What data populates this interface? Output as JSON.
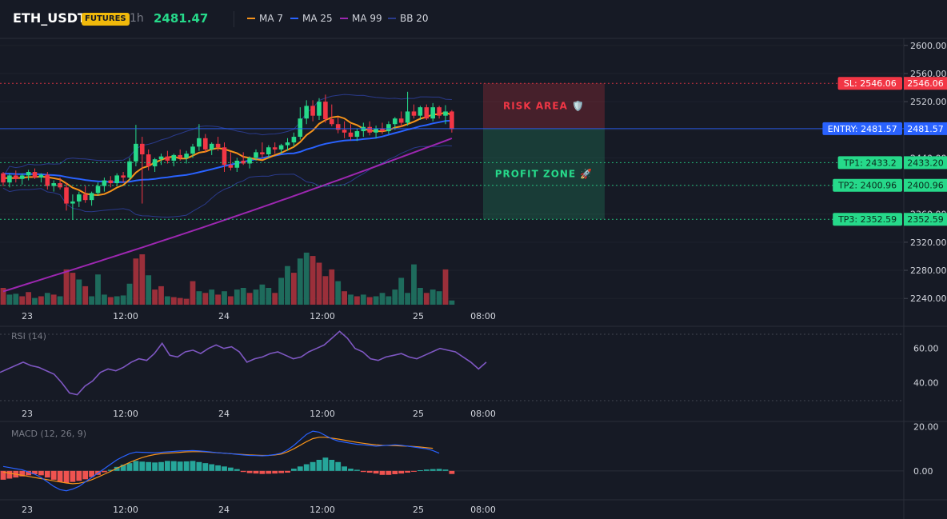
{
  "header": {
    "symbol": "ETH_USDT",
    "badge": "FUTURES",
    "timeframe": "1h",
    "last_price": "2481.47",
    "legend": [
      {
        "label": "MA 7",
        "color": "#f7931a"
      },
      {
        "label": "MA 25",
        "color": "#2962ff"
      },
      {
        "label": "MA 99",
        "color": "#9c27b0"
      },
      {
        "label": "BB 20",
        "color": "#2a3a8a"
      }
    ]
  },
  "colors": {
    "up": "#26d98a",
    "down": "#f23645",
    "vol_up": "#1e6b5c",
    "vol_down": "#9b2f3a",
    "entry": "#2962ff",
    "sl": "#f23645",
    "tp": "#26d98a",
    "rsi": "#7e57c2",
    "macd": "#2962ff",
    "signal": "#f7931a"
  },
  "zones": {
    "risk_label": "RISK AREA 🛡️",
    "profit_label": "PROFIT ZONE 🚀"
  },
  "chart_data": [
    {
      "type": "candlestick",
      "title": "ETH_USDT",
      "ylim": [
        2230,
        2610
      ],
      "yticks": [
        "2600.00",
        "2560.00",
        "2520.00",
        "2480.00",
        "2440.00",
        "2400.00",
        "2360.00",
        "2320.00",
        "2280.00",
        "2240.00"
      ],
      "xticks": [
        "23",
        "12:00",
        "24",
        "12:00",
        "25",
        "08:00"
      ],
      "candles": [
        [
          2418,
          2420,
          2400,
          2405
        ],
        [
          2405,
          2418,
          2398,
          2415
        ],
        [
          2415,
          2422,
          2405,
          2410
        ],
        [
          2410,
          2418,
          2402,
          2415
        ],
        [
          2415,
          2423,
          2408,
          2420
        ],
        [
          2420,
          2425,
          2410,
          2412
        ],
        [
          2412,
          2418,
          2405,
          2416
        ],
        [
          2416,
          2420,
          2395,
          2400
        ],
        [
          2400,
          2408,
          2392,
          2404
        ],
        [
          2404,
          2412,
          2395,
          2398
        ],
        [
          2398,
          2405,
          2365,
          2375
        ],
        [
          2375,
          2388,
          2352,
          2378
        ],
        [
          2378,
          2392,
          2370,
          2388
        ],
        [
          2388,
          2400,
          2376,
          2380
        ],
        [
          2380,
          2392,
          2372,
          2390
        ],
        [
          2390,
          2405,
          2386,
          2400
        ],
        [
          2400,
          2412,
          2392,
          2408
        ],
        [
          2408,
          2414,
          2398,
          2404
        ],
        [
          2404,
          2418,
          2400,
          2415
        ],
        [
          2415,
          2420,
          2405,
          2412
        ],
        [
          2412,
          2440,
          2408,
          2435
        ],
        [
          2435,
          2487,
          2428,
          2460
        ],
        [
          2460,
          2470,
          2375,
          2445
        ],
        [
          2445,
          2452,
          2422,
          2428
        ],
        [
          2428,
          2440,
          2420,
          2438
        ],
        [
          2438,
          2446,
          2430,
          2442
        ],
        [
          2442,
          2450,
          2432,
          2436
        ],
        [
          2436,
          2446,
          2428,
          2444
        ],
        [
          2444,
          2452,
          2436,
          2440
        ],
        [
          2440,
          2450,
          2432,
          2446
        ],
        [
          2446,
          2460,
          2440,
          2456
        ],
        [
          2456,
          2488,
          2450,
          2468
        ],
        [
          2468,
          2474,
          2448,
          2452
        ],
        [
          2452,
          2462,
          2444,
          2460
        ],
        [
          2460,
          2470,
          2450,
          2455
        ],
        [
          2455,
          2462,
          2420,
          2430
        ],
        [
          2430,
          2448,
          2422,
          2426
        ],
        [
          2426,
          2440,
          2420,
          2436
        ],
        [
          2436,
          2448,
          2430,
          2432
        ],
        [
          2432,
          2442,
          2425,
          2440
        ],
        [
          2440,
          2452,
          2436,
          2448
        ],
        [
          2448,
          2462,
          2440,
          2445
        ],
        [
          2445,
          2458,
          2440,
          2455
        ],
        [
          2455,
          2462,
          2446,
          2452
        ],
        [
          2452,
          2460,
          2446,
          2458
        ],
        [
          2458,
          2468,
          2450,
          2462
        ],
        [
          2462,
          2476,
          2456,
          2470
        ],
        [
          2470,
          2512,
          2466,
          2496
        ],
        [
          2496,
          2522,
          2488,
          2514
        ],
        [
          2514,
          2522,
          2492,
          2500
        ],
        [
          2500,
          2525,
          2494,
          2520
        ],
        [
          2520,
          2530,
          2490,
          2495
        ],
        [
          2495,
          2516,
          2485,
          2488
        ],
        [
          2488,
          2498,
          2475,
          2480
        ],
        [
          2480,
          2492,
          2468,
          2476
        ],
        [
          2476,
          2488,
          2465,
          2470
        ],
        [
          2470,
          2482,
          2464,
          2478
        ],
        [
          2478,
          2490,
          2470,
          2484
        ],
        [
          2484,
          2492,
          2472,
          2476
        ],
        [
          2476,
          2486,
          2468,
          2482
        ],
        [
          2482,
          2490,
          2474,
          2478
        ],
        [
          2478,
          2492,
          2474,
          2488
        ],
        [
          2488,
          2498,
          2480,
          2496
        ],
        [
          2496,
          2506,
          2484,
          2490
        ],
        [
          2490,
          2534,
          2486,
          2506
        ],
        [
          2506,
          2516,
          2496,
          2500
        ],
        [
          2500,
          2514,
          2494,
          2512
        ],
        [
          2512,
          2516,
          2494,
          2496
        ],
        [
          2496,
          2518,
          2492,
          2512
        ],
        [
          2512,
          2514,
          2496,
          2500
        ],
        [
          2500,
          2515,
          2488,
          2506
        ],
        [
          2506,
          2508,
          2476,
          2481
        ]
      ],
      "volumes": [
        [
          20,
          0
        ],
        [
          12,
          1
        ],
        [
          13,
          1
        ],
        [
          10,
          0
        ],
        [
          15,
          0
        ],
        [
          8,
          1
        ],
        [
          10,
          0
        ],
        [
          14,
          1
        ],
        [
          12,
          0
        ],
        [
          10,
          1
        ],
        [
          42,
          0
        ],
        [
          38,
          0
        ],
        [
          30,
          1
        ],
        [
          22,
          0
        ],
        [
          10,
          1
        ],
        [
          36,
          1
        ],
        [
          12,
          1
        ],
        [
          9,
          0
        ],
        [
          10,
          1
        ],
        [
          11,
          1
        ],
        [
          25,
          1
        ],
        [
          55,
          0
        ],
        [
          60,
          0
        ],
        [
          35,
          1
        ],
        [
          18,
          0
        ],
        [
          22,
          0
        ],
        [
          10,
          1
        ],
        [
          9,
          0
        ],
        [
          8,
          0
        ],
        [
          7,
          0
        ],
        [
          28,
          0
        ],
        [
          16,
          1
        ],
        [
          14,
          0
        ],
        [
          18,
          1
        ],
        [
          12,
          0
        ],
        [
          16,
          1
        ],
        [
          10,
          0
        ],
        [
          18,
          1
        ],
        [
          20,
          1
        ],
        [
          14,
          0
        ],
        [
          18,
          1
        ],
        [
          24,
          1
        ],
        [
          20,
          1
        ],
        [
          14,
          0
        ],
        [
          32,
          1
        ],
        [
          46,
          1
        ],
        [
          38,
          0
        ],
        [
          55,
          1
        ],
        [
          62,
          1
        ],
        [
          58,
          0
        ],
        [
          50,
          0
        ],
        [
          34,
          0
        ],
        [
          42,
          0
        ],
        [
          28,
          1
        ],
        [
          16,
          0
        ],
        [
          12,
          1
        ],
        [
          10,
          0
        ],
        [
          12,
          1
        ],
        [
          9,
          0
        ],
        [
          10,
          1
        ],
        [
          14,
          1
        ],
        [
          10,
          1
        ],
        [
          18,
          1
        ],
        [
          32,
          1
        ],
        [
          14,
          1
        ],
        [
          48,
          1
        ],
        [
          20,
          1
        ],
        [
          14,
          0
        ],
        [
          18,
          1
        ],
        [
          16,
          1
        ],
        [
          42,
          0
        ],
        [
          5,
          1
        ]
      ],
      "ma7_start": 2412,
      "levels": [
        {
          "name": "SL",
          "label": "SL: 2546.06",
          "value": 2546.06,
          "axis": "2546.06"
        },
        {
          "name": "ENTRY",
          "label": "ENTRY: 2481.57",
          "value": 2481.57,
          "axis": "2481.57"
        },
        {
          "name": "TP1",
          "label": "TP1: 2433.2",
          "value": 2433.2,
          "axis": "2433.20"
        },
        {
          "name": "TP2",
          "label": "TP2: 2400.96",
          "value": 2400.96,
          "axis": "2400.96"
        },
        {
          "name": "TP3",
          "label": "TP3: 2352.59",
          "value": 2352.59,
          "axis": "2352.59"
        }
      ]
    },
    {
      "type": "line",
      "title": "RSI (14)",
      "ylim": [
        30,
        72
      ],
      "yticks": [
        "60.00",
        "40.00"
      ],
      "xticks": [
        "23",
        "12:00",
        "24",
        "12:00",
        "25",
        "08:00"
      ],
      "values": [
        46,
        48,
        50,
        52,
        50,
        49,
        47,
        45,
        40,
        34,
        33,
        38,
        41,
        46,
        48,
        47,
        49,
        52,
        54,
        53,
        57,
        63,
        56,
        55,
        58,
        59,
        57,
        60,
        62,
        60,
        61,
        58,
        52,
        54,
        55,
        57,
        58,
        56,
        54,
        55,
        58,
        60,
        62,
        66,
        70,
        66,
        60,
        58,
        54,
        53,
        55,
        56,
        57,
        55,
        54,
        56,
        58,
        60,
        59,
        58,
        55,
        52,
        48,
        52
      ]
    },
    {
      "type": "bar",
      "title": "MACD (12, 26, 9)",
      "ylim": [
        -12,
        22
      ],
      "yticks": [
        "20.00",
        "0.00"
      ],
      "xticks": [
        "23",
        "12:00",
        "24",
        "12:00",
        "25",
        "08:00"
      ],
      "hist": [
        -4,
        -3.5,
        -3,
        -2.5,
        -2,
        -1.5,
        -2,
        -3,
        -4,
        -5,
        -5.5,
        -5,
        -4.5,
        -3.8,
        -2.8,
        -1.8,
        -0.6,
        0.5,
        1.8,
        2.8,
        3.5,
        4.5,
        4.2,
        4,
        3.8,
        4,
        4.5,
        4.4,
        4.2,
        4.3,
        4.5,
        4,
        3.5,
        3,
        2.5,
        2,
        1.5,
        0.8,
        -0.5,
        -1,
        -1.2,
        -1.4,
        -1.3,
        -1.2,
        -1,
        -0.8,
        1,
        2,
        3,
        4,
        5,
        6,
        5,
        4,
        2,
        1,
        0.5,
        -0.5,
        -0.8,
        -1.2,
        -1.8,
        -1.8,
        -1.5,
        -1.2,
        -0.8,
        -0.4,
        0.3,
        0.6,
        0.8,
        0.9,
        0.6,
        -1.4
      ],
      "macd": [
        2,
        1.5,
        1,
        0.5,
        -0.5,
        -1.5,
        -3,
        -5,
        -7,
        -8.5,
        -9,
        -8.2,
        -7,
        -5,
        -3,
        -1,
        1,
        3,
        5,
        6.5,
        7.8,
        8.5,
        8.4,
        8.3,
        8.2,
        8.4,
        8.6,
        8.8,
        9,
        9.1,
        9.2,
        9,
        8.8,
        8.5,
        8.2,
        8,
        7.8,
        7.5,
        7.2,
        7,
        6.9,
        6.8,
        7,
        7.4,
        8,
        9.5,
        11.5,
        14,
        16.5,
        18,
        17.5,
        16,
        14.5,
        13.5,
        13,
        12.5,
        12,
        11.8,
        11.5,
        11.2,
        11.4,
        11.6,
        11.8,
        11.6,
        11.2,
        10.8,
        10.4,
        10,
        9.2,
        8
      ],
      "signal": [
        -0.5,
        -1,
        -1.5,
        -2,
        -2.5,
        -3,
        -3.5,
        -4,
        -4.5,
        -5,
        -5.5,
        -5.8,
        -5.6,
        -5,
        -4,
        -2.8,
        -1.5,
        -0.2,
        1.2,
        2.5,
        3.8,
        5,
        6,
        6.8,
        7.4,
        7.8,
        8,
        8.2,
        8.4,
        8.6,
        8.7,
        8.7,
        8.6,
        8.4,
        8.2,
        8,
        7.8,
        7.6,
        7.4,
        7.2,
        7.1,
        7,
        7,
        7.2,
        7.6,
        8.6,
        10,
        11.6,
        13.2,
        14.6,
        15.2,
        15.2,
        14.8,
        14.4,
        13.9,
        13.4,
        12.9,
        12.5,
        12.1,
        11.8,
        11.6,
        11.5,
        11.4,
        11.3,
        11.2,
        11,
        10.8,
        10.5,
        10.2
      ]
    }
  ]
}
